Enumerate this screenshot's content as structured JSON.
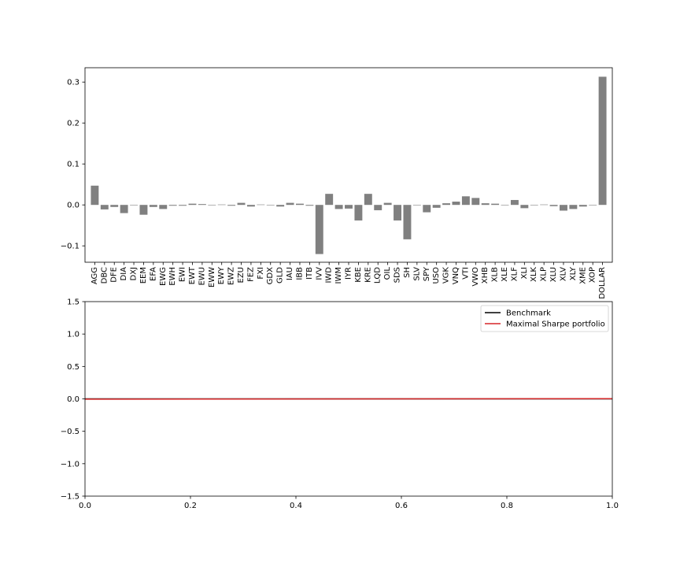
{
  "chart_data": [
    {
      "type": "bar",
      "title": "",
      "xlabel": "",
      "ylabel": "",
      "categories": [
        "AGG",
        "DBC",
        "DFE",
        "DIA",
        "DXJ",
        "EEM",
        "EFA",
        "EWG",
        "EWH",
        "EWI",
        "EWT",
        "EWU",
        "EWW",
        "EWY",
        "EWZ",
        "EZU",
        "FEZ",
        "FXI",
        "GDX",
        "GLD",
        "IAU",
        "IBB",
        "ITB",
        "IVV",
        "IWD",
        "IWM",
        "IYR",
        "KBE",
        "KRE",
        "LQD",
        "OIL",
        "SDS",
        "SH",
        "SLV",
        "SPY",
        "USO",
        "VGK",
        "VNQ",
        "VTI",
        "VWO",
        "XHB",
        "XLB",
        "XLE",
        "XLF",
        "XLI",
        "XLK",
        "XLP",
        "XLU",
        "XLV",
        "XLY",
        "XME",
        "XOP",
        "DOLLAR"
      ],
      "values": [
        0.047,
        -0.011,
        -0.005,
        -0.02,
        0.0,
        -0.024,
        -0.005,
        -0.01,
        -0.002,
        -0.002,
        0.003,
        0.002,
        0.0,
        0.001,
        -0.002,
        0.005,
        -0.004,
        0.001,
        0.0,
        -0.004,
        0.005,
        0.003,
        -0.002,
        -0.12,
        0.027,
        -0.01,
        -0.009,
        -0.038,
        0.027,
        -0.013,
        0.005,
        -0.038,
        -0.084,
        0.0,
        -0.018,
        -0.007,
        0.004,
        0.008,
        0.021,
        0.017,
        0.004,
        0.003,
        0.0,
        0.012,
        -0.008,
        0.0,
        0.001,
        -0.003,
        -0.014,
        -0.01,
        -0.004,
        0.0,
        0.313
      ],
      "yticks": [
        0.3,
        0.2,
        0.1,
        0.0,
        -0.1
      ],
      "ytick_labels": [
        "0.3",
        "0.2",
        "0.1",
        "0.0",
        "−0.1"
      ],
      "ylim": [
        -0.14,
        0.335
      ],
      "bar_color": "#808080",
      "grid": false
    },
    {
      "type": "line",
      "title": "",
      "xlabel": "",
      "ylabel": "",
      "xlim": [
        0.0,
        1.0
      ],
      "ylim": [
        -1.5,
        1.5
      ],
      "xticks": [
        0.0,
        0.2,
        0.4,
        0.6,
        0.8,
        1.0
      ],
      "xtick_labels": [
        "0.0",
        "0.2",
        "0.4",
        "0.6",
        "0.8",
        "1.0"
      ],
      "yticks": [
        1.5,
        1.0,
        0.5,
        0.0,
        -0.5,
        -1.0,
        -1.5
      ],
      "ytick_labels": [
        "1.5",
        "1.0",
        "0.5",
        "0.0",
        "−0.5",
        "−1.0",
        "−1.5"
      ],
      "legend_position": "top-right",
      "grid": false,
      "series": [
        {
          "name": "Benchmark",
          "color": "#000000",
          "x": [
            0.0,
            1.0
          ],
          "y": [
            0.0,
            0.0
          ]
        },
        {
          "name": "Maximal Sharpe portfolio",
          "color": "#d62728",
          "x": [
            0.0,
            1.0
          ],
          "y": [
            -0.005,
            0.003
          ]
        }
      ]
    }
  ]
}
